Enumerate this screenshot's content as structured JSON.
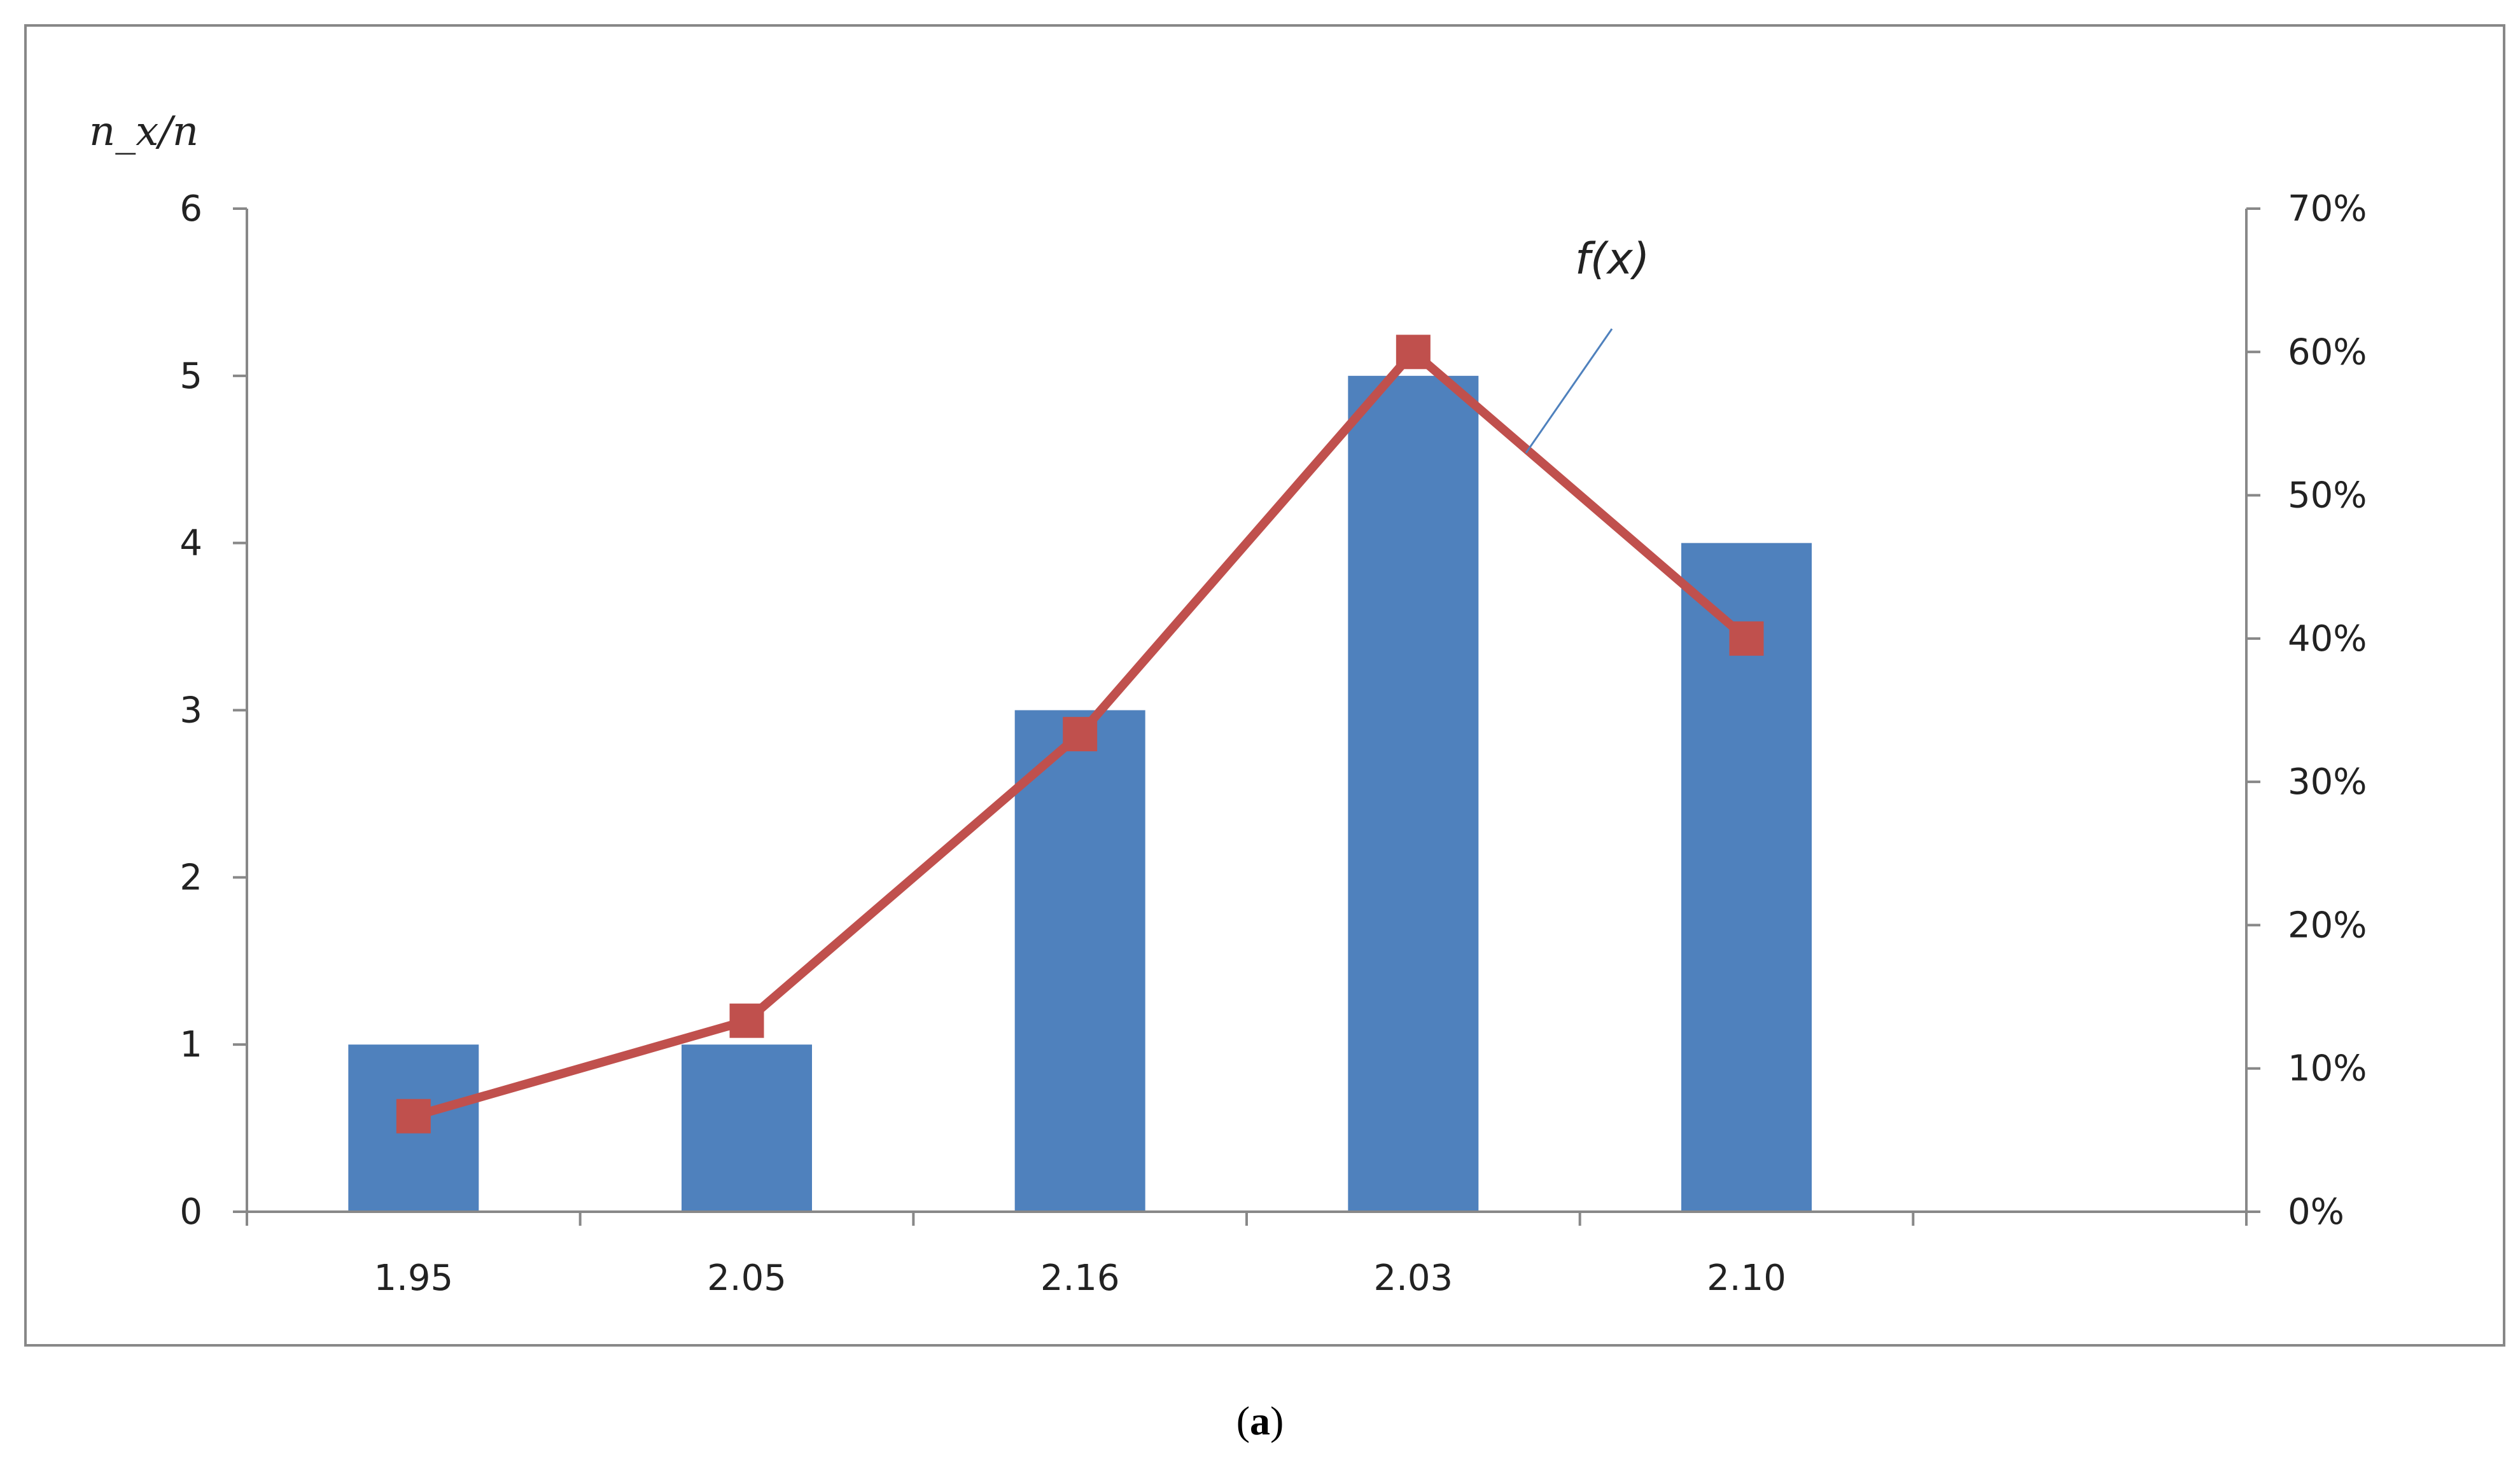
{
  "chart_data": {
    "type": "bar",
    "categories": [
      "1.95",
      "2.05",
      "2.16",
      "2.03",
      "2.10"
    ],
    "series": [
      {
        "values": [
          1,
          1,
          3,
          5,
          4
        ],
        "axis": "left",
        "kind": "bar",
        "color": "#4F81BD"
      },
      {
        "name": "f(x)",
        "values": [
          0.0667,
          0.1333,
          0.3333,
          0.6,
          0.4
        ],
        "axis": "right",
        "kind": "line",
        "color": "#C0504D"
      }
    ],
    "ylabel": "n_x/n",
    "ylim": [
      0,
      6
    ],
    "yticks": [
      "0",
      "1",
      "2",
      "3",
      "4",
      "5",
      "6"
    ],
    "y2lim": [
      0,
      0.7
    ],
    "y2ticks": [
      "0%",
      "10%",
      "20%",
      "30%",
      "40%",
      "50%",
      "60%",
      "70%"
    ],
    "grid": false,
    "legend": "none"
  },
  "caption": {
    "open": "(",
    "letter": "a",
    "close": ")"
  }
}
